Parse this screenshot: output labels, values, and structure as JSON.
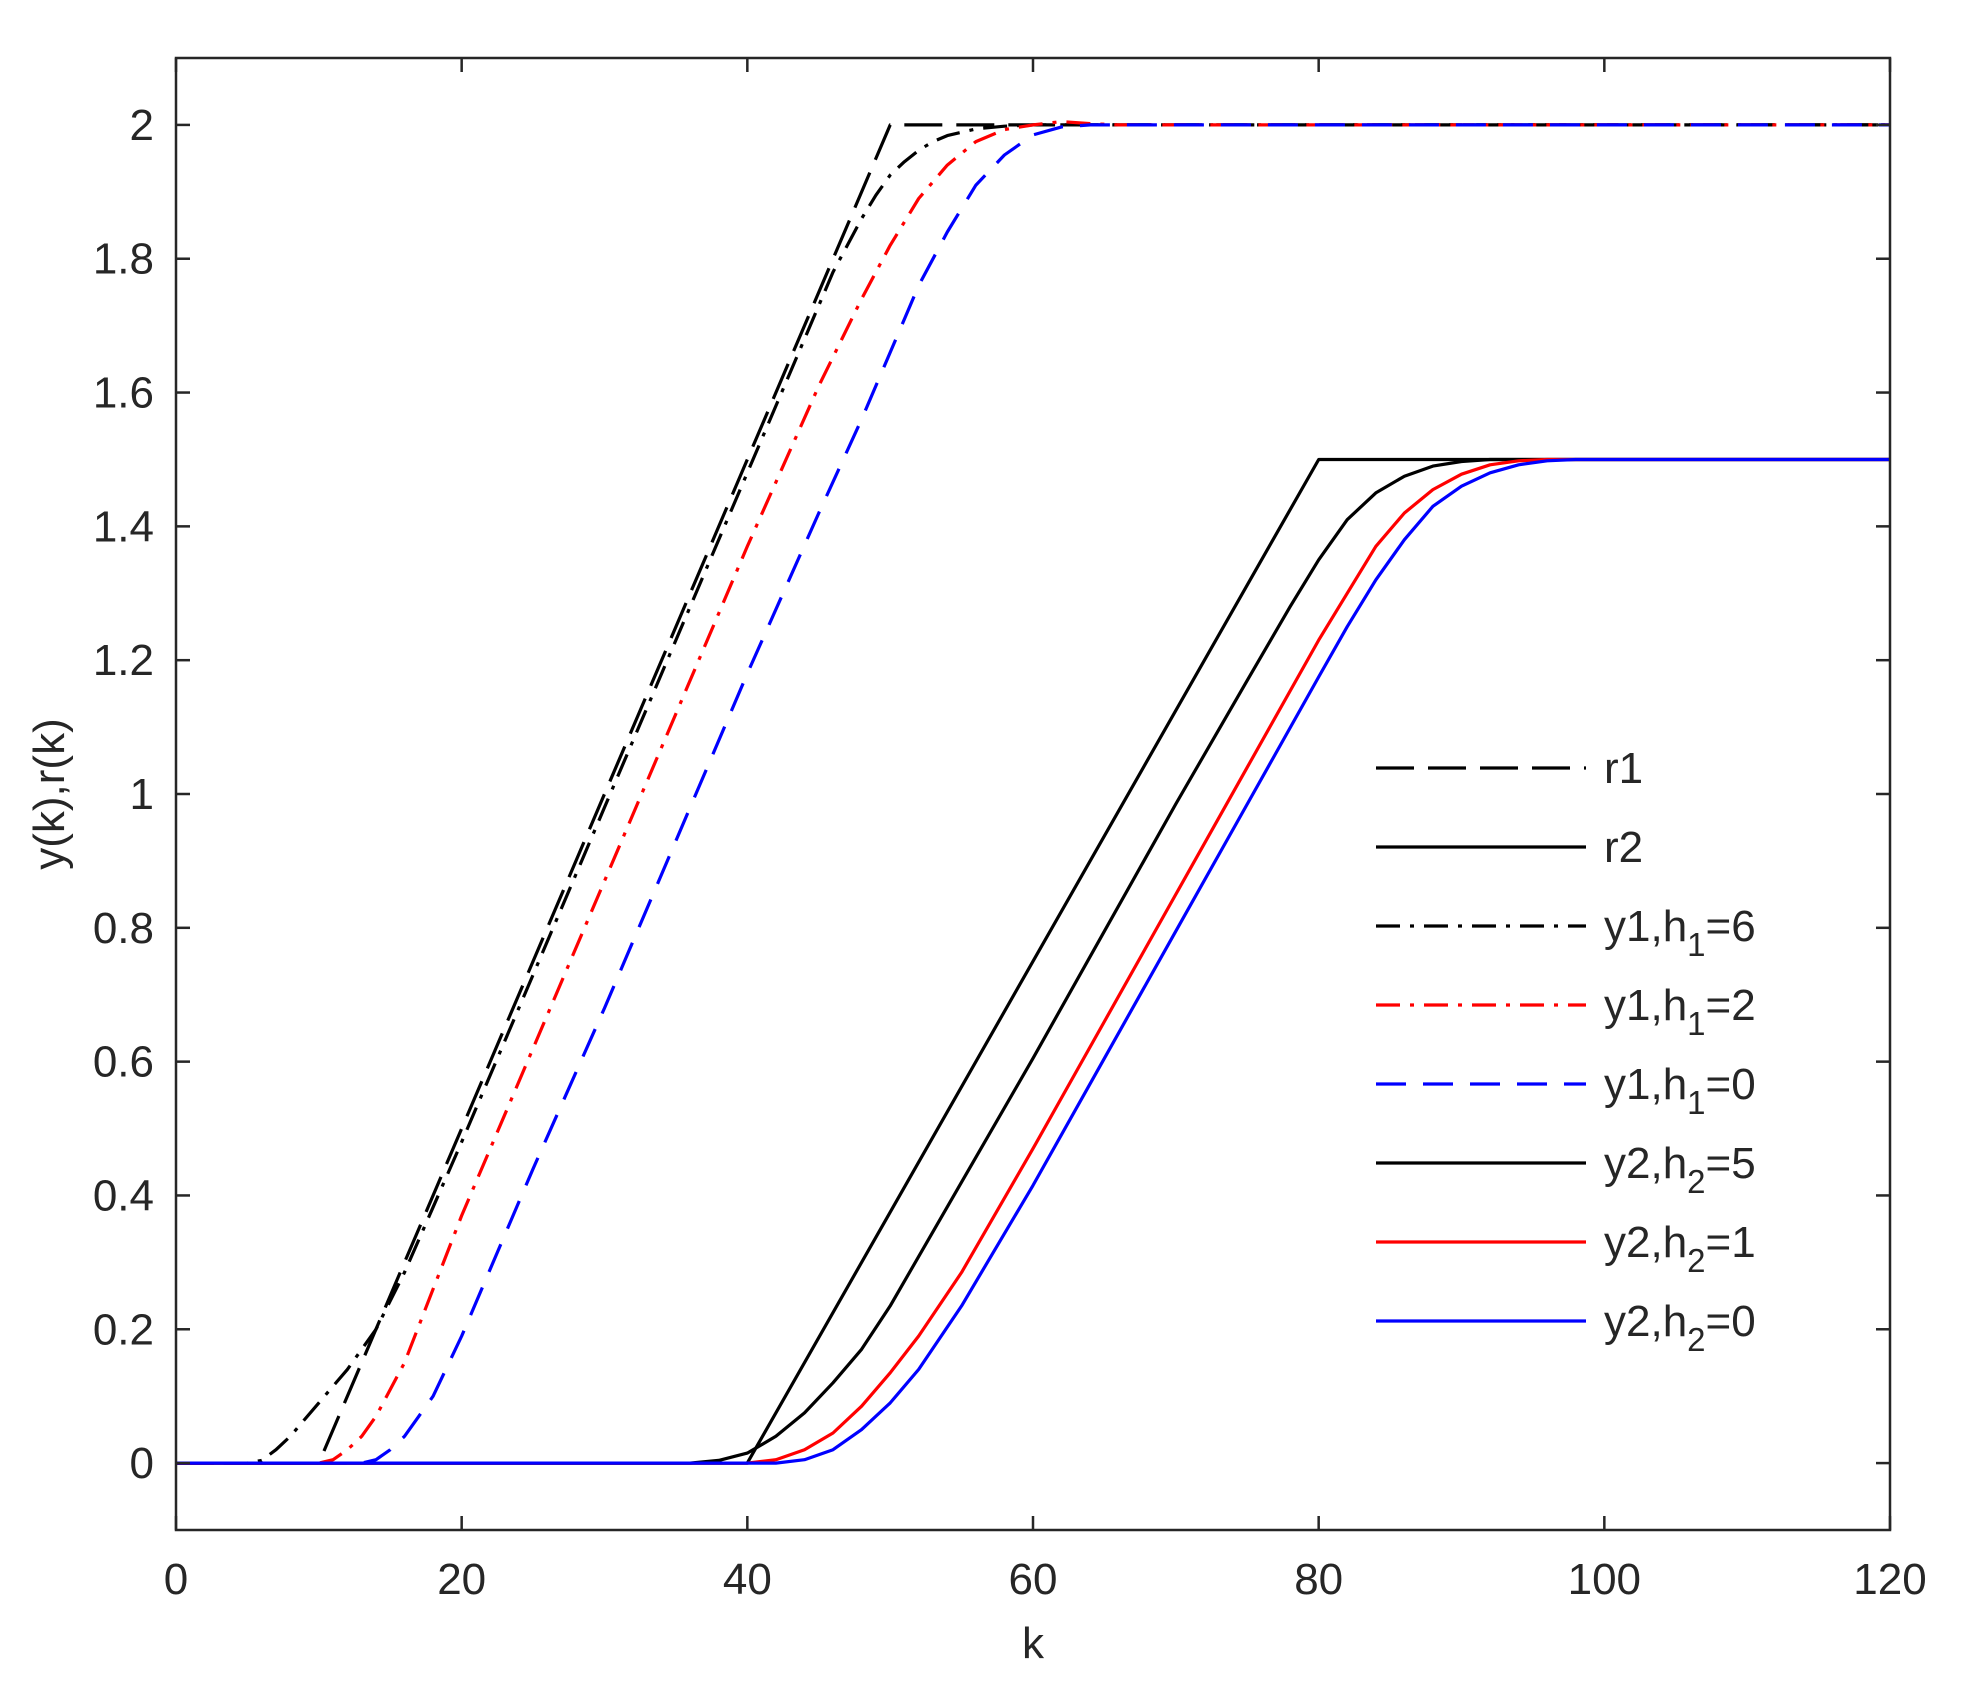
{
  "chart_data": {
    "type": "line",
    "title": "",
    "xlabel": "k",
    "ylabel": "y(k),r(k)",
    "xlim": [
      0,
      120
    ],
    "ylim": [
      -0.1,
      2.1
    ],
    "xticks": [
      0,
      20,
      40,
      60,
      80,
      100,
      120
    ],
    "xtick_labels": [
      "0",
      "20",
      "40",
      "60",
      "80",
      "100",
      "120"
    ],
    "yticks": [
      0,
      0.2,
      0.4,
      0.6,
      0.8,
      1,
      1.2,
      1.4,
      1.6,
      1.8,
      2
    ],
    "ytick_labels": [
      "0",
      "0.2",
      "0.4",
      "0.6",
      "0.8",
      "1",
      "1.2",
      "1.4",
      "1.6",
      "1.8",
      "2"
    ],
    "grid": false,
    "legend_position": "right",
    "series": [
      {
        "name": "r1",
        "legend": {
          "base": "r1"
        },
        "color": "#000000",
        "dash": "long-dash",
        "x": [
          0,
          10,
          50,
          120
        ],
        "y": [
          0,
          0,
          2,
          2
        ]
      },
      {
        "name": "r2",
        "legend": {
          "base": "r2"
        },
        "color": "#000000",
        "dash": "solid",
        "x": [
          0,
          40,
          80,
          120
        ],
        "y": [
          0,
          0,
          1.5,
          1.5
        ]
      },
      {
        "name": "y1,h1=6",
        "legend": {
          "base": "y1,h",
          "sub": "1",
          "tail": "=6"
        },
        "color": "#000000",
        "dash": "dash-dot",
        "x": [
          0,
          5,
          6,
          7,
          8,
          9,
          10,
          11,
          12,
          14,
          16,
          20,
          25,
          30,
          35,
          40,
          44,
          46,
          48,
          49,
          50,
          51,
          52,
          53,
          54,
          56,
          58,
          60,
          120
        ],
        "y": [
          0,
          0,
          0.004,
          0.02,
          0.04,
          0.065,
          0.09,
          0.115,
          0.14,
          0.2,
          0.285,
          0.48,
          0.73,
          0.98,
          1.23,
          1.48,
          1.68,
          1.78,
          1.86,
          1.895,
          1.925,
          1.945,
          1.962,
          1.975,
          1.984,
          1.994,
          1.998,
          2.0,
          2.0
        ]
      },
      {
        "name": "y1,h1=2",
        "legend": {
          "base": "y1,h",
          "sub": "1",
          "tail": "=2"
        },
        "color": "#ff0000",
        "dash": "dash-dot",
        "x": [
          0,
          10,
          11,
          12,
          13,
          14,
          16,
          18,
          20,
          25,
          30,
          35,
          40,
          45,
          48,
          50,
          52,
          54,
          56,
          58,
          60,
          62,
          64,
          66,
          120
        ],
        "y": [
          0,
          0,
          0.005,
          0.02,
          0.04,
          0.07,
          0.15,
          0.26,
          0.37,
          0.62,
          0.87,
          1.12,
          1.37,
          1.61,
          1.74,
          1.82,
          1.89,
          1.94,
          1.975,
          1.993,
          2.0,
          2.005,
          2.002,
          2.0,
          2.0
        ]
      },
      {
        "name": "y1,h1=0",
        "legend": {
          "base": "y1,h",
          "sub": "1",
          "tail": "=0"
        },
        "color": "#0000ff",
        "dash": "dash",
        "x": [
          0,
          13,
          14,
          15,
          16,
          17,
          18,
          20,
          22,
          25,
          30,
          35,
          40,
          45,
          48,
          50,
          52,
          54,
          56,
          58,
          60,
          62,
          64,
          66,
          120
        ],
        "y": [
          0,
          0,
          0.005,
          0.02,
          0.04,
          0.07,
          0.1,
          0.19,
          0.29,
          0.44,
          0.68,
          0.93,
          1.18,
          1.42,
          1.56,
          1.66,
          1.76,
          1.84,
          1.91,
          1.955,
          1.985,
          1.997,
          2.0,
          2.0,
          2.0
        ]
      },
      {
        "name": "y2,h2=5",
        "legend": {
          "base": "y2,h",
          "sub": "2",
          "tail": "=5"
        },
        "color": "#000000",
        "dash": "solid",
        "x": [
          0,
          36,
          38,
          40,
          42,
          44,
          46,
          48,
          50,
          55,
          60,
          65,
          70,
          75,
          78,
          80,
          82,
          84,
          86,
          88,
          90,
          92,
          94,
          120
        ],
        "y": [
          0,
          0,
          0.004,
          0.015,
          0.04,
          0.075,
          0.12,
          0.17,
          0.235,
          0.42,
          0.605,
          0.795,
          0.985,
          1.17,
          1.28,
          1.35,
          1.41,
          1.45,
          1.475,
          1.49,
          1.497,
          1.5,
          1.5,
          1.5
        ]
      },
      {
        "name": "y2,h2=1",
        "legend": {
          "base": "y2,h",
          "sub": "2",
          "tail": "=1"
        },
        "color": "#ff0000",
        "dash": "solid",
        "x": [
          0,
          40,
          42,
          44,
          46,
          48,
          50,
          52,
          55,
          60,
          65,
          70,
          75,
          80,
          82,
          84,
          86,
          88,
          90,
          92,
          94,
          96,
          120
        ],
        "y": [
          0,
          0,
          0.005,
          0.02,
          0.045,
          0.085,
          0.135,
          0.19,
          0.285,
          0.47,
          0.66,
          0.85,
          1.04,
          1.23,
          1.3,
          1.37,
          1.42,
          1.455,
          1.478,
          1.492,
          1.498,
          1.5,
          1.5
        ]
      },
      {
        "name": "y2,h2=0",
        "legend": {
          "base": "y2,h",
          "sub": "2",
          "tail": "=0"
        },
        "color": "#0000ff",
        "dash": "solid",
        "x": [
          0,
          42,
          44,
          46,
          48,
          50,
          52,
          55,
          60,
          65,
          70,
          75,
          80,
          82,
          84,
          86,
          88,
          90,
          92,
          94,
          96,
          98,
          120
        ],
        "y": [
          0,
          0,
          0.005,
          0.02,
          0.05,
          0.09,
          0.14,
          0.235,
          0.415,
          0.605,
          0.795,
          0.985,
          1.175,
          1.25,
          1.32,
          1.38,
          1.43,
          1.46,
          1.48,
          1.492,
          1.498,
          1.5,
          1.5
        ]
      }
    ]
  }
}
